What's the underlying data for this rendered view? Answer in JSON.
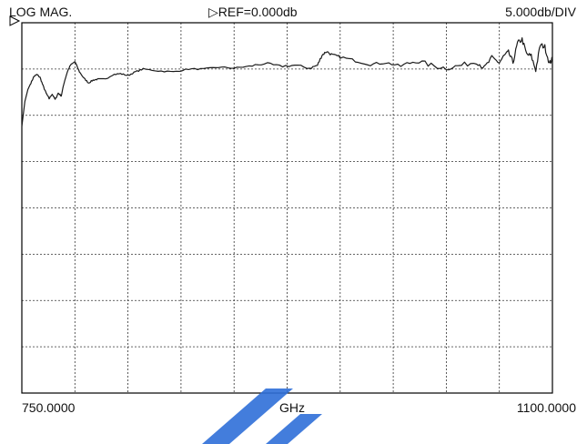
{
  "header": {
    "mode": "LOG MAG.",
    "ref": "▷REF=0.000db",
    "scale": "5.000db/DIV"
  },
  "footer": {
    "start": "750.0000",
    "unit": "GHz",
    "stop": "1100.0000"
  },
  "colors": {
    "trace": "#1a1a1a",
    "grid": "#333333",
    "frame": "#000000",
    "watermark": "#2f6fd8"
  },
  "chart_data": {
    "type": "line",
    "xunit": "GHz",
    "xlim": [
      750,
      1100
    ],
    "ylim": [
      -40,
      0
    ],
    "y_per_division": 5,
    "x_divisions": 10,
    "y_divisions": 8,
    "grid": true,
    "reference_marker": 0,
    "series": [
      {
        "x": [
          750,
          752,
          754,
          756,
          758,
          760,
          762,
          764,
          766,
          768,
          770,
          772,
          774,
          776,
          778,
          780,
          782,
          785,
          788,
          791,
          794,
          797,
          800,
          805,
          810,
          815,
          820,
          825,
          830,
          840,
          850,
          860,
          870,
          880,
          890,
          900,
          910,
          920,
          930,
          940,
          945,
          948,
          951,
          955,
          960,
          970,
          980,
          990,
          1000,
          1010,
          1020,
          1030,
          1040,
          1050,
          1055,
          1060,
          1065,
          1068,
          1071,
          1074,
          1077,
          1080,
          1083,
          1086,
          1089,
          1092,
          1095,
          1098,
          1100
        ],
        "y": [
          -11.2,
          -8.5,
          -7.2,
          -6.5,
          -5.8,
          -5.6,
          -5.9,
          -6.8,
          -7.6,
          -8.2,
          -7.7,
          -8.3,
          -7.6,
          -7.9,
          -6.4,
          -5.3,
          -4.6,
          -4.2,
          -5.3,
          -6.0,
          -6.5,
          -6.2,
          -6.1,
          -6.1,
          -5.6,
          -5.5,
          -5.7,
          -5.3,
          -5.0,
          -5.2,
          -5.3,
          -5.0,
          -5.0,
          -4.8,
          -4.9,
          -4.7,
          -4.4,
          -4.7,
          -4.6,
          -4.9,
          -4.6,
          -3.5,
          -3.1,
          -3.5,
          -3.7,
          -4.1,
          -4.5,
          -4.3,
          -4.7,
          -4.1,
          -4.6,
          -4.9,
          -4.6,
          -4.2,
          -4.9,
          -3.8,
          -4.3,
          -3.6,
          -3.2,
          -4.3,
          -2.2,
          -1.8,
          -3.4,
          -3.6,
          -5.1,
          -2.4,
          -2.6,
          -4.4,
          -3.9
        ]
      }
    ]
  }
}
